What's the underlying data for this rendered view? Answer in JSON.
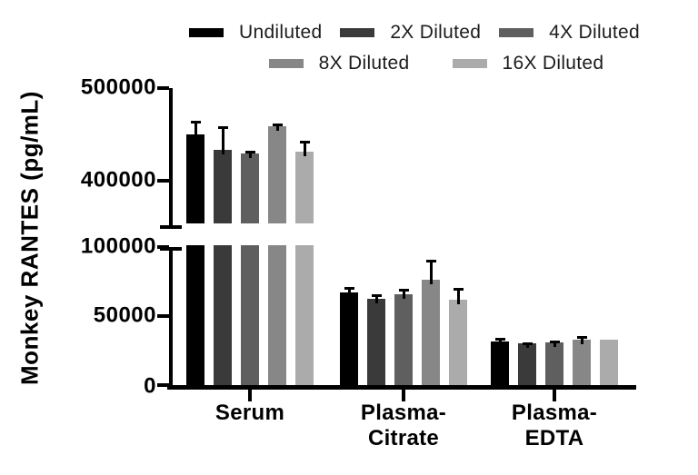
{
  "chart_data": {
    "type": "bar",
    "title": "",
    "ylabel": "Monkey RANTES (pg/mL)",
    "xlabel": "",
    "categories": [
      "Serum",
      "Plasma-\nCitrate",
      "Plasma-\nEDTA"
    ],
    "series": [
      {
        "name": "Undiluted",
        "color": "#000000",
        "values": [
          450000,
          67000,
          31500
        ],
        "sd": [
          15000,
          4000,
          3000
        ]
      },
      {
        "name": "2X Diluted",
        "color": "#3a3a3a",
        "values": [
          433000,
          62500,
          30000
        ],
        "sd": [
          26000,
          3000,
          1200
        ]
      },
      {
        "name": "4X Diluted",
        "color": "#5f5f5f",
        "values": [
          429000,
          66000,
          30800
        ],
        "sd": [
          3000,
          3500,
          1500
        ]
      },
      {
        "name": "8X Diluted",
        "color": "#878787",
        "values": [
          459000,
          76500,
          33000
        ],
        "sd": [
          2500,
          14000,
          2500
        ]
      },
      {
        "name": "16X Diluted",
        "color": "#ababab",
        "values": [
          431000,
          62000,
          33000
        ],
        "sd": [
          12000,
          8500,
          0
        ]
      }
    ],
    "axis": {
      "broken": true,
      "lower_ticks": [
        0,
        50000,
        100000
      ],
      "upper_ticks": [
        400000,
        500000
      ],
      "lower_range": [
        0,
        100000
      ],
      "upper_range": [
        350000,
        500000
      ],
      "grid": false
    },
    "legend_position": "top",
    "error_bars": "sd-upper-only"
  }
}
